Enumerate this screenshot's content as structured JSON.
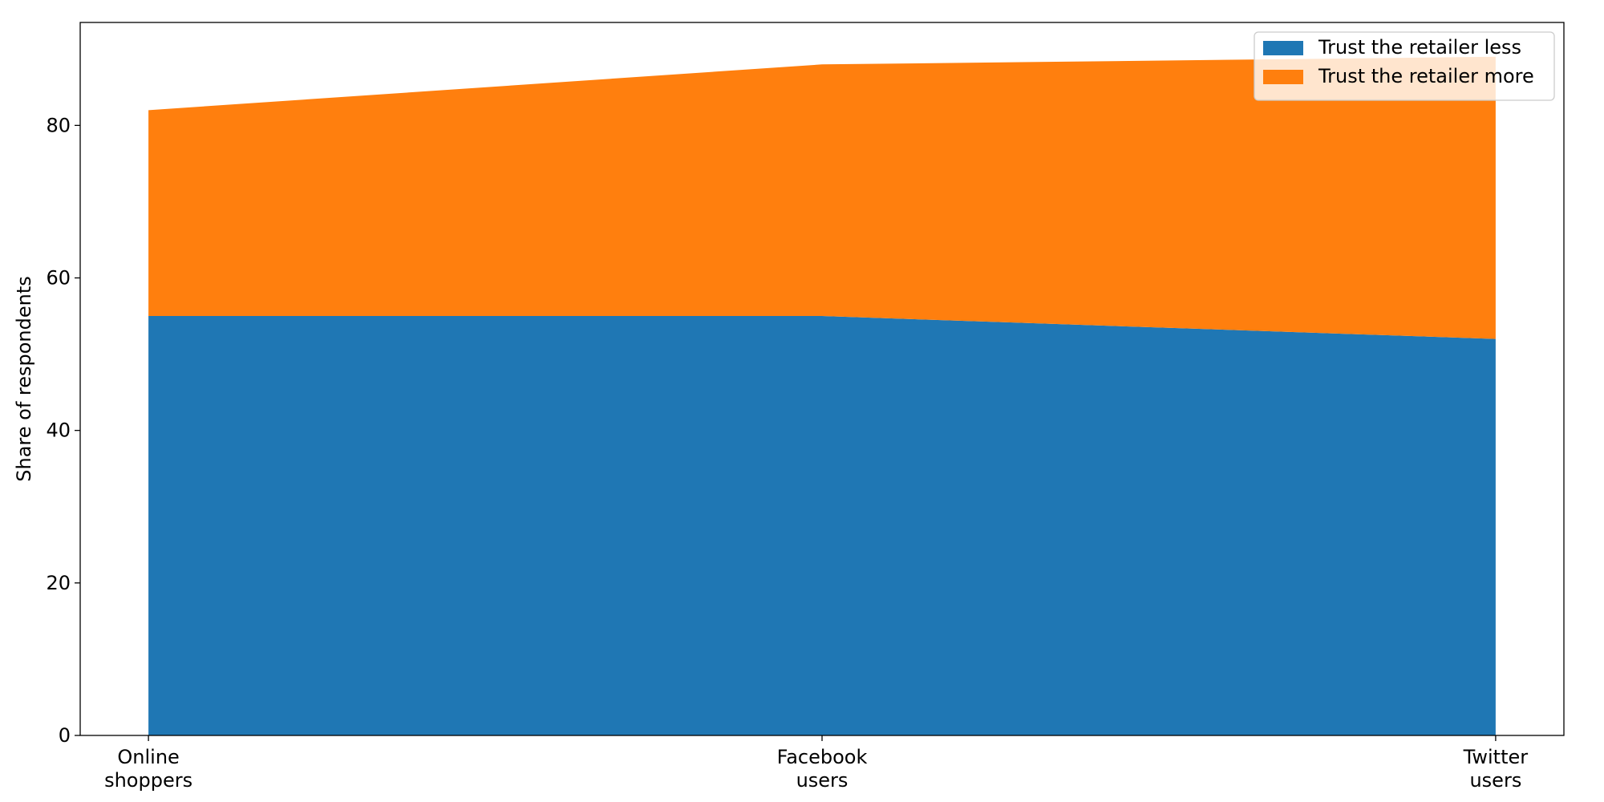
{
  "chart_data": {
    "type": "area",
    "stacked": true,
    "categories": [
      [
        "Online",
        "shoppers"
      ],
      [
        "Facebook",
        "users"
      ],
      [
        "Twitter",
        "users"
      ]
    ],
    "series": [
      {
        "name": "Trust the retailer less",
        "values": [
          55,
          55,
          52
        ],
        "color": "#1f77b4"
      },
      {
        "name": "Trust the retailer more",
        "values": [
          27,
          33,
          37
        ],
        "color": "#ff7f0e"
      }
    ],
    "title": "",
    "xlabel": "",
    "ylabel": "Share of respondents",
    "ylim": [
      0,
      93.5
    ],
    "yticks": [
      0,
      20,
      40,
      60,
      80
    ],
    "grid": false,
    "legend_position": "top-right"
  }
}
